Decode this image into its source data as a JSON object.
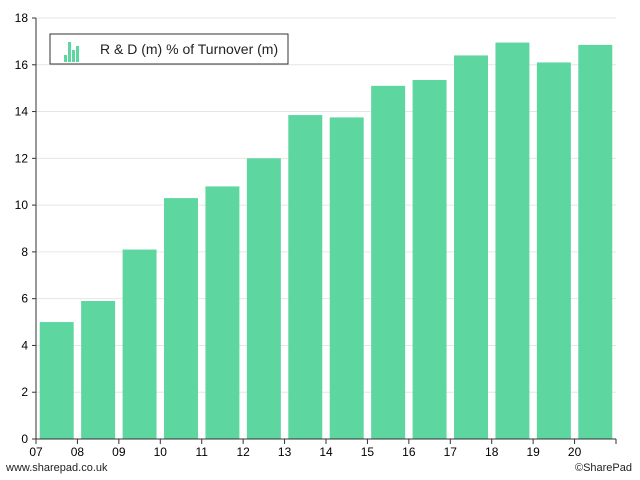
{
  "chart_data": {
    "type": "bar",
    "categories": [
      "07",
      "08",
      "09",
      "10",
      "11",
      "12",
      "13",
      "14",
      "15",
      "16",
      "17",
      "18",
      "19",
      "20"
    ],
    "series": [
      {
        "name": "R & D (m) % of Turnover (m)",
        "values": [
          5.0,
          5.9,
          8.1,
          10.3,
          10.8,
          12.0,
          13.85,
          13.75,
          15.1,
          15.35,
          16.4,
          16.95,
          16.1,
          16.85
        ],
        "color": "#5ed6a0"
      }
    ],
    "ylim": [
      0,
      18
    ],
    "yticks": [
      0,
      2,
      4,
      6,
      8,
      10,
      12,
      14,
      16,
      18
    ],
    "grid": true,
    "legend_position": "top-left"
  },
  "legend": {
    "label": "R & D (m) % of Turnover (m)",
    "icon": "bar-chart-icon"
  },
  "footer": {
    "left": "www.sharepad.co.uk",
    "right": "©SharePad"
  }
}
